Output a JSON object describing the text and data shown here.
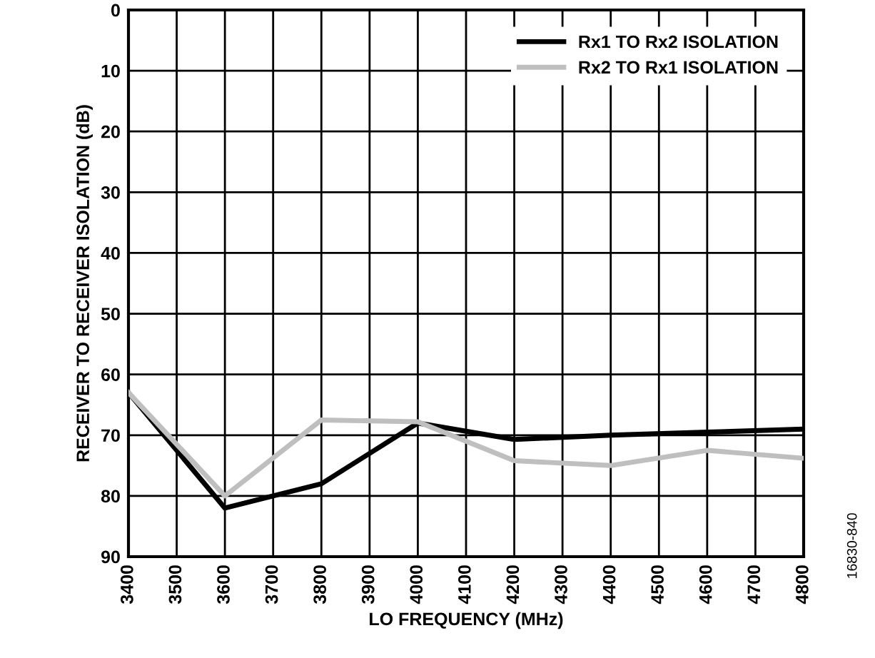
{
  "chart_data": {
    "type": "line",
    "xlabel": "LO FREQUENCY (MHz)",
    "ylabel": "RECEIVER TO RECEIVER ISOLATION (dB)",
    "x": [
      3400,
      3600,
      3800,
      4000,
      4200,
      4400,
      4600,
      4800
    ],
    "series": [
      {
        "name": "Rx1 TO Rx2 ISOLATION",
        "color": "#000000",
        "values": [
          63,
          82,
          78,
          68,
          70.7,
          70,
          69.5,
          69
        ]
      },
      {
        "name": "Rx2 TO Rx1 ISOLATION",
        "color": "#bfbfbf",
        "values": [
          63,
          80,
          67.5,
          67.8,
          74.2,
          75,
          72.5,
          73.8
        ]
      }
    ],
    "xlim": [
      3400,
      4800
    ],
    "xticks": [
      3400,
      3500,
      3600,
      3700,
      3800,
      3900,
      4000,
      4100,
      4200,
      4300,
      4400,
      4500,
      4600,
      4700,
      4800
    ],
    "ylim": [
      90,
      0
    ],
    "yticks": [
      0,
      10,
      20,
      30,
      40,
      50,
      60,
      70,
      80,
      90
    ],
    "grid": true,
    "legend": "top right",
    "marker": "none",
    "line_style": "solid",
    "annotations": [
      "16830-840"
    ]
  }
}
